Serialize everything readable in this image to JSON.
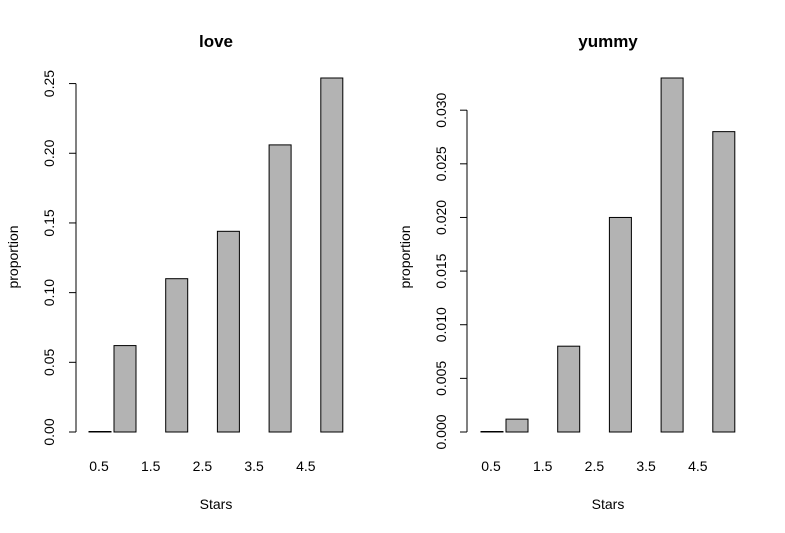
{
  "chart_data": [
    {
      "type": "bar",
      "title": "love",
      "xlabel": "Stars",
      "ylabel": "proportion",
      "categories": [
        "0.5",
        "1.5",
        "2.5",
        "3.5",
        "4.5"
      ],
      "x": [
        0.5,
        1,
        1.5,
        2,
        2.5,
        3,
        3.5,
        4,
        4.5,
        5
      ],
      "values": [
        0.0,
        0.062,
        0.0,
        0.11,
        0.0,
        0.144,
        0.0,
        0.206,
        0.0,
        0.254
      ],
      "bar_x": [
        0.5,
        1,
        2,
        3,
        4,
        5
      ],
      "bar_values": [
        0.0,
        0.062,
        0.11,
        0.144,
        0.206,
        0.254
      ],
      "yticks": [
        "0.00",
        "0.05",
        "0.10",
        "0.15",
        "0.20",
        "0.25"
      ],
      "ylim": [
        0,
        0.254
      ],
      "grid": false,
      "bar_color": "#b3b3b3"
    },
    {
      "type": "bar",
      "title": "yummy",
      "xlabel": "Stars",
      "ylabel": "proportion",
      "categories": [
        "0.5",
        "1.5",
        "2.5",
        "3.5",
        "4.5"
      ],
      "bar_x": [
        0.5,
        1,
        2,
        3,
        4,
        5
      ],
      "bar_values": [
        0.0,
        0.0012,
        0.008,
        0.02,
        0.033,
        0.028
      ],
      "yticks": [
        "0.000",
        "0.005",
        "0.010",
        "0.015",
        "0.020",
        "0.025",
        "0.030"
      ],
      "ylim": [
        0,
        0.033
      ],
      "grid": false,
      "bar_color": "#b3b3b3"
    }
  ]
}
